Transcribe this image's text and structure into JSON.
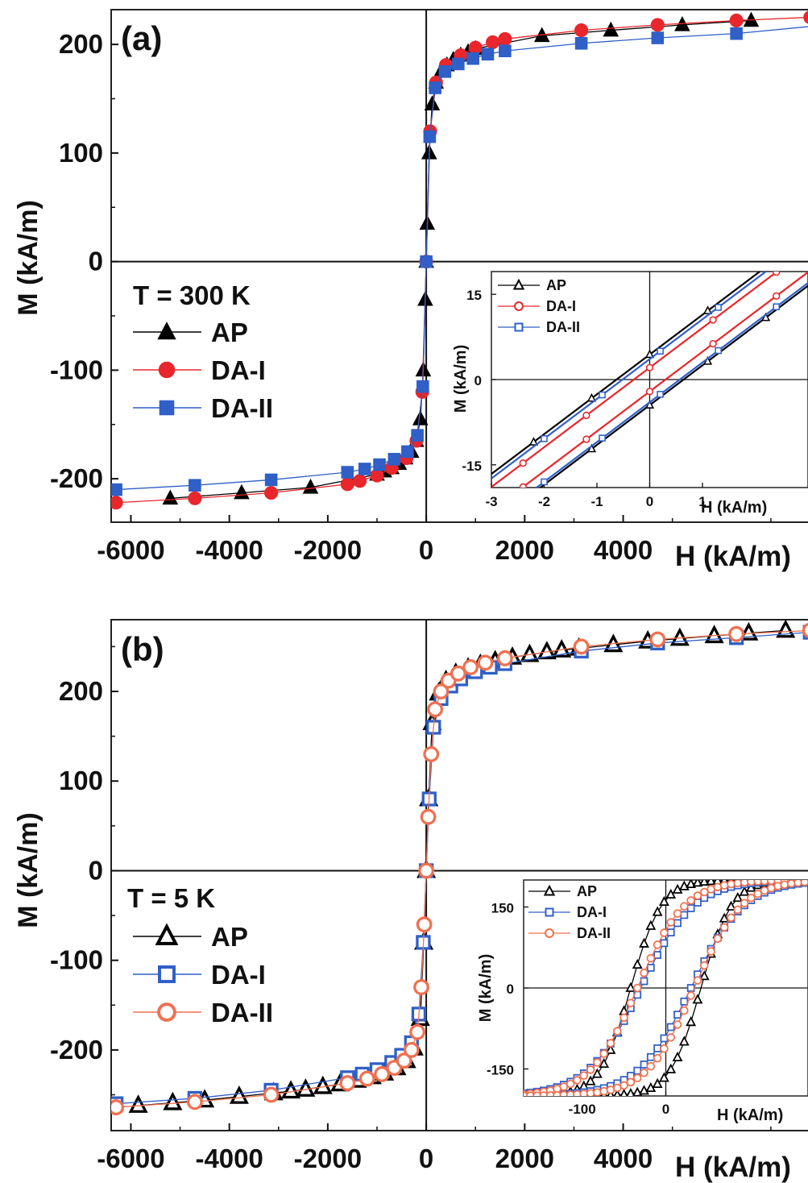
{
  "chart_data": [
    {
      "type": "scatter",
      "panel_label": "(a)",
      "xlabel": "H (kA/m)",
      "ylabel": "M (kA/m)",
      "xlim": [
        -6400,
        8000
      ],
      "ylim": [
        -240,
        232
      ],
      "x_ticks": [
        -6000,
        -4000,
        -2000,
        0,
        2000,
        4000
      ],
      "y_ticks": [
        -200,
        -100,
        0,
        100,
        200
      ],
      "temperature_label": "T = 300 K",
      "legend_position": "left-middle",
      "series": [
        {
          "name": "AP",
          "marker": "triangle-filled",
          "color": "#000000",
          "x": [
            -5200,
            -3750,
            -2350,
            -1000,
            -850,
            -700,
            -550,
            -420,
            -300,
            -200,
            -120,
            -60,
            -20,
            0,
            20,
            60,
            120,
            200,
            300,
            420,
            550,
            700,
            850,
            1000,
            2350,
            3750,
            5200,
            6600
          ],
          "y": [
            -218,
            -213,
            -208,
            -196,
            -193,
            -190,
            -186,
            -181,
            -175,
            -165,
            -145,
            -100,
            -35,
            0,
            35,
            100,
            145,
            165,
            175,
            181,
            186,
            190,
            193,
            196,
            208,
            213,
            218,
            222
          ]
        },
        {
          "name": "DA-I",
          "marker": "circle-filled",
          "color": "#e8262b",
          "x": [
            -6300,
            -4700,
            -3150,
            -1600,
            -1350,
            -1000,
            -700,
            -400,
            -200,
            -80,
            0,
            80,
            200,
            400,
            700,
            1000,
            1350,
            1600,
            3150,
            4700,
            6300,
            7800
          ],
          "y": [
            -222,
            -218,
            -213,
            -205,
            -202,
            -197,
            -190,
            -181,
            -165,
            -120,
            0,
            120,
            165,
            181,
            190,
            197,
            202,
            205,
            213,
            218,
            222,
            225
          ]
        },
        {
          "name": "DA-II",
          "marker": "square-filled",
          "color": "#2f5fc7",
          "x": [
            -6300,
            -4700,
            -3150,
            -1600,
            -1250,
            -950,
            -650,
            -380,
            -180,
            -70,
            0,
            70,
            180,
            380,
            650,
            950,
            1250,
            1600,
            3150,
            4700,
            6300,
            7900
          ],
          "y": [
            -210,
            -206,
            -201,
            -194,
            -191,
            -187,
            -182,
            -175,
            -160,
            -115,
            0,
            115,
            160,
            175,
            182,
            187,
            191,
            194,
            201,
            206,
            210,
            217
          ]
        }
      ],
      "inset": {
        "xlabel": "H (kA/m)",
        "ylabel": "M (kA/m)",
        "xlim": [
          -3,
          3
        ],
        "ylim": [
          -19,
          19
        ],
        "x_ticks": [
          -3,
          -2,
          -1,
          0,
          1
        ],
        "y_ticks": [
          -15,
          0,
          15
        ],
        "series": [
          {
            "name": "AP",
            "marker": "triangle-open",
            "color": "#000000",
            "upper_branch": {
              "x": [
                -3,
                3
              ],
              "y": [
                -16.6,
                25.4
              ]
            },
            "lower_branch": {
              "x": [
                -3,
                3
              ],
              "y": [
                -25.5,
                16.5
              ]
            },
            "markers_x": [
              -2.2,
              -1.1,
              0,
              1.1,
              2.2
            ]
          },
          {
            "name": "DA-I",
            "marker": "circle-open",
            "color": "#e8262b",
            "upper_branch": {
              "x": [
                -3,
                3
              ],
              "y": [
                -18.9,
                23.1
              ]
            },
            "lower_branch": {
              "x": [
                -3,
                3
              ],
              "y": [
                -23.1,
                18.9
              ]
            },
            "markers_x": [
              -2.4,
              -1.2,
              0,
              1.2,
              2.4
            ]
          },
          {
            "name": "DA-II",
            "marker": "square-open",
            "color": "#2f5fc7",
            "upper_branch": {
              "x": [
                -3,
                3
              ],
              "y": [
                -17.4,
                24.6
              ]
            },
            "lower_branch": {
              "x": [
                -3,
                3
              ],
              "y": [
                -25.0,
                17.0
              ]
            },
            "markers_x": [
              -2.0,
              -0.9,
              0.2,
              1.3,
              2.4
            ]
          }
        ]
      }
    },
    {
      "type": "scatter",
      "panel_label": "(b)",
      "xlabel": "H (kA/m)",
      "ylabel": "M (kA/m)",
      "xlim": [
        -6400,
        8000
      ],
      "ylim": [
        -290,
        280
      ],
      "x_ticks": [
        -6000,
        -4000,
        -2000,
        0,
        2000,
        4000
      ],
      "y_ticks": [
        -200,
        -100,
        0,
        100,
        200
      ],
      "temperature_label": "T = 5 K",
      "legend_position": "left-middle",
      "series": [
        {
          "name": "AP",
          "marker": "triangle-open",
          "color": "#000000",
          "x": [
            -5850,
            -5150,
            -4500,
            -3800,
            -3100,
            -2750,
            -2450,
            -2100,
            -1750,
            -1400,
            -1100,
            -850,
            -600,
            -400,
            -250,
            -120,
            -50,
            0,
            50,
            120,
            250,
            400,
            600,
            850,
            1100,
            1400,
            1750,
            2100,
            2450,
            2750,
            3100,
            3800,
            4500,
            5150,
            5850,
            6550,
            7300
          ],
          "y": [
            -262,
            -259,
            -256,
            -252,
            -248,
            -246,
            -244,
            -241,
            -238,
            -234,
            -230,
            -226,
            -220,
            -212,
            -198,
            -165,
            -80,
            0,
            80,
            165,
            198,
            212,
            220,
            226,
            230,
            234,
            238,
            241,
            244,
            246,
            248,
            252,
            256,
            259,
            262,
            265,
            268
          ]
        },
        {
          "name": "DA-I",
          "marker": "square-open",
          "color": "#2f5fc7",
          "x": [
            -6300,
            -4700,
            -3150,
            -1600,
            -1300,
            -1000,
            -700,
            -500,
            -300,
            -150,
            -60,
            0,
            60,
            150,
            300,
            500,
            700,
            1000,
            1300,
            1600,
            3150,
            4700,
            6300,
            7800
          ],
          "y": [
            -260,
            -254,
            -245,
            -231,
            -227,
            -222,
            -214,
            -206,
            -192,
            -160,
            -80,
            0,
            80,
            160,
            192,
            206,
            214,
            222,
            227,
            231,
            245,
            254,
            260,
            266
          ]
        },
        {
          "name": "DA-II",
          "marker": "circle-open",
          "color": "#f07050",
          "x": [
            -6300,
            -4700,
            -3150,
            -1600,
            -1200,
            -900,
            -650,
            -450,
            -300,
            -180,
            -100,
            -40,
            0,
            40,
            100,
            180,
            300,
            450,
            650,
            900,
            1200,
            1600,
            3150,
            4700,
            6300,
            7800
          ],
          "y": [
            -264,
            -258,
            -250,
            -237,
            -232,
            -227,
            -220,
            -212,
            -200,
            -180,
            -130,
            -60,
            0,
            60,
            130,
            180,
            200,
            212,
            220,
            227,
            232,
            237,
            250,
            258,
            264,
            268
          ]
        }
      ],
      "inset": {
        "xlabel": "H (kA/m)",
        "ylabel": "M (kA/m)",
        "xlim": [
          -170,
          170
        ],
        "ylim": [
          -200,
          200
        ],
        "x_ticks": [
          -100,
          0
        ],
        "y_ticks": [
          -150,
          0,
          150
        ],
        "series": [
          {
            "name": "AP",
            "marker": "triangle-open",
            "color": "#000000",
            "loop": {
              "Hc": 42,
              "Ms": 200,
              "width": 22
            }
          },
          {
            "name": "DA-I",
            "marker": "square-open",
            "color": "#2f5fc7",
            "loop": {
              "Hc": 30,
              "Ms": 200,
              "width": 38
            }
          },
          {
            "name": "DA-II",
            "marker": "circle-open",
            "color": "#f07050",
            "loop": {
              "Hc": 34,
              "Ms": 200,
              "width": 34
            }
          }
        ]
      }
    }
  ]
}
